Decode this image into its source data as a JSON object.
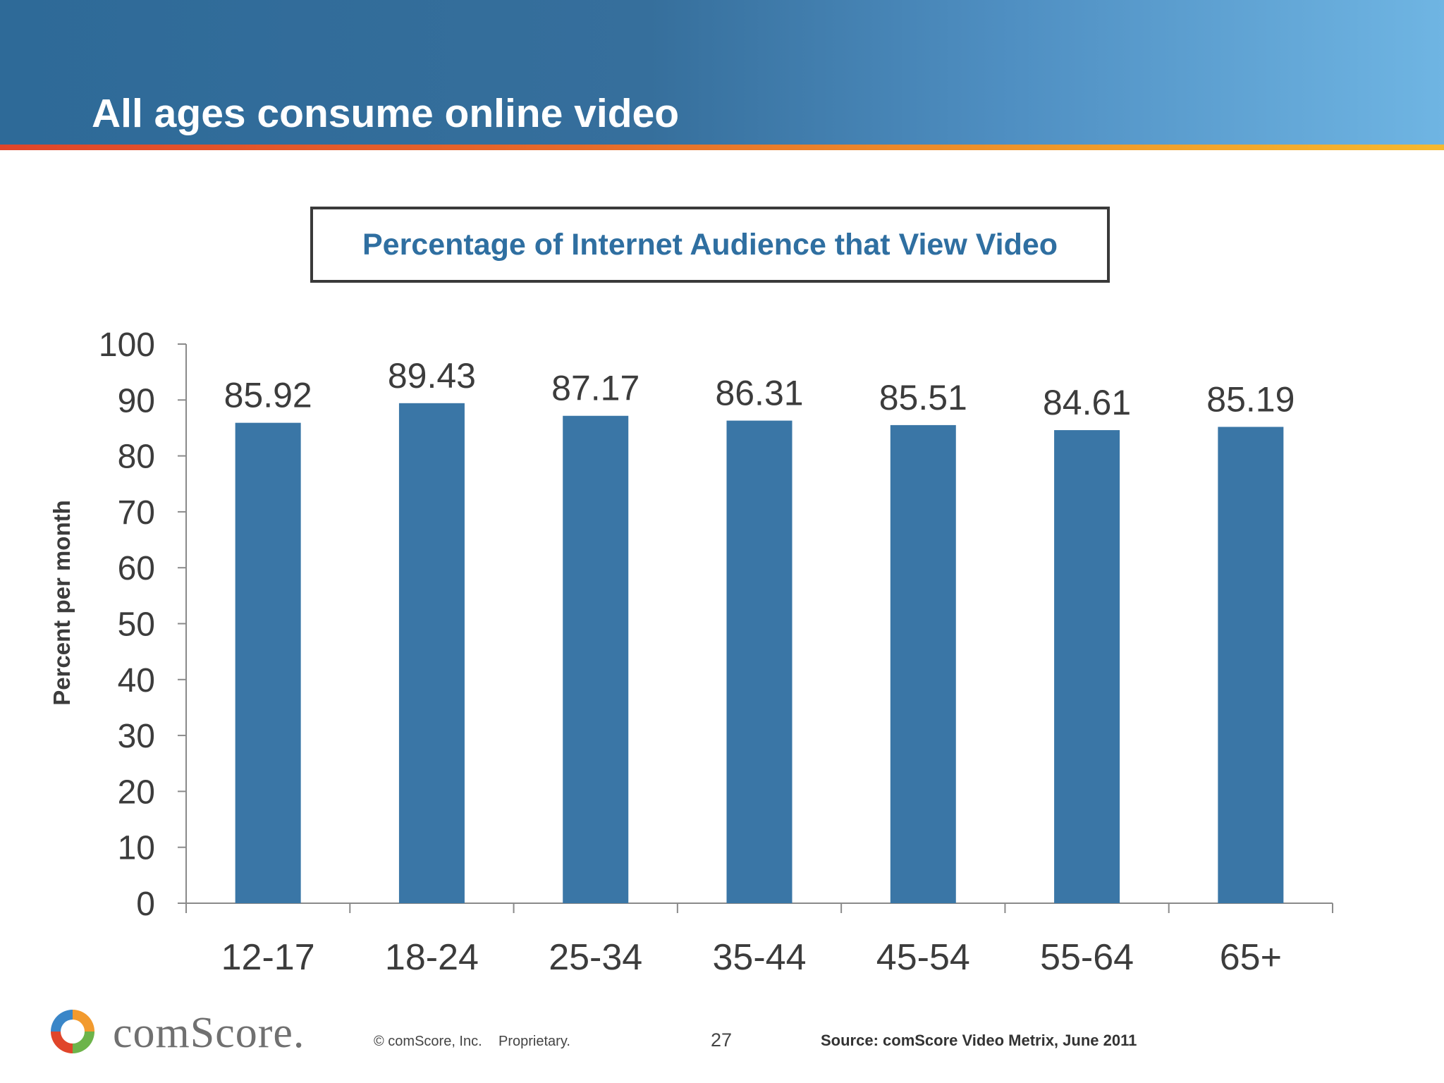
{
  "header": {
    "title": "All ages consume online video"
  },
  "chart_data": {
    "type": "bar",
    "title": "Percentage of Internet Audience that View Video",
    "ylabel": "Percent per month",
    "xlabel": "",
    "categories": [
      "12-17",
      "18-24",
      "25-34",
      "35-44",
      "45-54",
      "55-64",
      "65+"
    ],
    "values": [
      85.92,
      89.43,
      87.17,
      86.31,
      85.51,
      84.61,
      85.19
    ],
    "data_labels": [
      "85.92",
      "89.43",
      "87.17",
      "86.31",
      "85.51",
      "84.61",
      "85.19"
    ],
    "ylim": [
      0,
      100
    ],
    "yticks": [
      0,
      10,
      20,
      30,
      40,
      50,
      60,
      70,
      80,
      90,
      100
    ],
    "grid": false,
    "legend": "none",
    "bar_color": "#3a76a6"
  },
  "footer": {
    "brand": "comScore.",
    "copyright": "© comScore, Inc.",
    "proprietary": "Proprietary.",
    "page_number": "27",
    "source": "Source:  comScore Video Metrix, June 2011"
  },
  "colors": {
    "header_start": "#2e6a98",
    "header_end": "#6fb5e3",
    "accent_stripe": "#e66a2a",
    "title_text": "#2f6fa1"
  }
}
